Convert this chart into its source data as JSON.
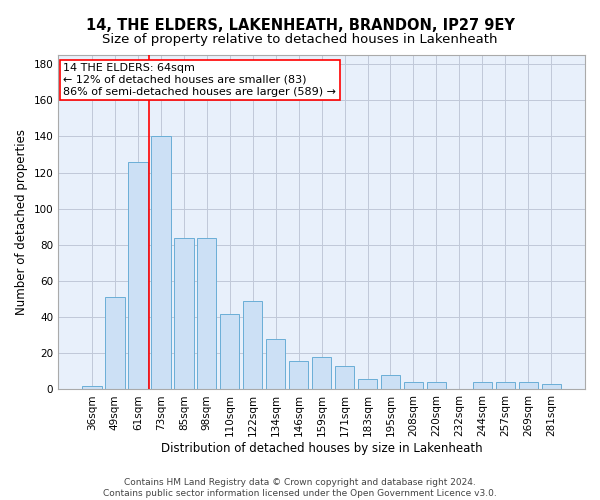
{
  "title": "14, THE ELDERS, LAKENHEATH, BRANDON, IP27 9EY",
  "subtitle": "Size of property relative to detached houses in Lakenheath",
  "xlabel": "Distribution of detached houses by size in Lakenheath",
  "ylabel": "Number of detached properties",
  "categories": [
    "36sqm",
    "49sqm",
    "61sqm",
    "73sqm",
    "85sqm",
    "98sqm",
    "110sqm",
    "122sqm",
    "134sqm",
    "146sqm",
    "159sqm",
    "171sqm",
    "183sqm",
    "195sqm",
    "208sqm",
    "220sqm",
    "232sqm",
    "244sqm",
    "257sqm",
    "269sqm",
    "281sqm"
  ],
  "values": [
    2,
    51,
    126,
    140,
    84,
    84,
    42,
    49,
    28,
    16,
    18,
    13,
    6,
    8,
    4,
    4,
    0,
    4,
    4,
    4,
    3
  ],
  "bar_color": "#cce0f5",
  "bar_edge_color": "#6aaed6",
  "ylim": [
    0,
    185
  ],
  "yticks": [
    0,
    20,
    40,
    60,
    80,
    100,
    120,
    140,
    160,
    180
  ],
  "annotation_box_text": "14 THE ELDERS: 64sqm\n← 12% of detached houses are smaller (83)\n86% of semi-detached houses are larger (589) →",
  "vline_x_index": 2.5,
  "footer_line1": "Contains HM Land Registry data © Crown copyright and database right 2024.",
  "footer_line2": "Contains public sector information licensed under the Open Government Licence v3.0.",
  "background_color": "#ffffff",
  "plot_bg_color": "#e8f0fb",
  "grid_color": "#c0c8d8",
  "title_fontsize": 10.5,
  "subtitle_fontsize": 9.5,
  "axis_label_fontsize": 8.5,
  "tick_fontsize": 7.5,
  "footer_fontsize": 6.5,
  "annotation_fontsize": 8
}
